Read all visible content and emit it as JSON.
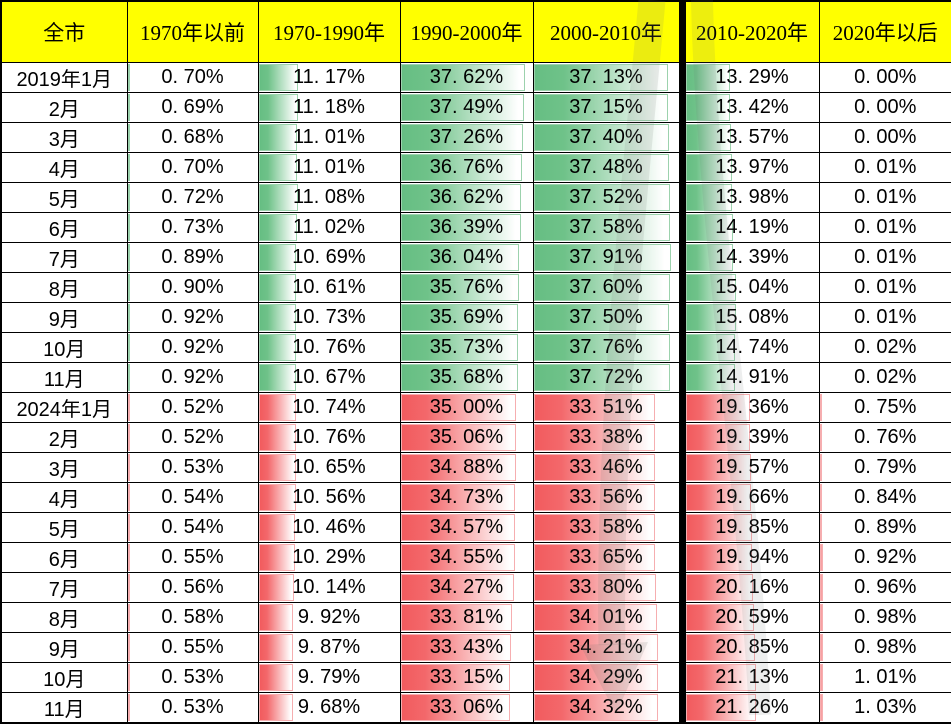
{
  "page": {
    "title": ""
  },
  "colors": {
    "header_bg": "#ffff00",
    "grid_line": "#000000",
    "thick_divider": "#000000",
    "text": "#000000",
    "green_bar": "#66be83",
    "green_bar_border": "#9cd2ad",
    "red_bar": "#f25b5e",
    "red_bar_border": "#f6aeb0",
    "watermark": "#8a8f8c"
  },
  "watermark": {
    "description": "faint gray curved downward-arrow overlay"
  },
  "chart_data": {
    "type": "table",
    "title": "",
    "unit": "%",
    "bar_axis_max": 40,
    "bar_color_by_group": {
      "2019": "green",
      "2024": "red"
    },
    "columns": [
      "全市",
      "1970年以前",
      "1970-1990年",
      "1990-2000年",
      "2000-2010年",
      "2010-2020年",
      "2020年以后"
    ],
    "rows": [
      {
        "label": "2019年1月",
        "bar": "green",
        "values": [
          0.7,
          11.17,
          37.62,
          37.13,
          13.29,
          0.0
        ]
      },
      {
        "label": "2月",
        "bar": "green",
        "values": [
          0.69,
          11.18,
          37.49,
          37.15,
          13.42,
          0.0
        ]
      },
      {
        "label": "3月",
        "bar": "green",
        "values": [
          0.68,
          11.01,
          37.26,
          37.4,
          13.57,
          0.0
        ]
      },
      {
        "label": "4月",
        "bar": "green",
        "values": [
          0.7,
          11.01,
          36.76,
          37.48,
          13.97,
          0.01
        ]
      },
      {
        "label": "5月",
        "bar": "green",
        "values": [
          0.72,
          11.08,
          36.62,
          37.52,
          13.98,
          0.01
        ]
      },
      {
        "label": "6月",
        "bar": "green",
        "values": [
          0.73,
          11.02,
          36.39,
          37.58,
          14.19,
          0.01
        ]
      },
      {
        "label": "7月",
        "bar": "green",
        "values": [
          0.89,
          10.69,
          36.04,
          37.91,
          14.39,
          0.01
        ]
      },
      {
        "label": "8月",
        "bar": "green",
        "values": [
          0.9,
          10.61,
          35.76,
          37.6,
          15.04,
          0.01
        ]
      },
      {
        "label": "9月",
        "bar": "green",
        "values": [
          0.92,
          10.73,
          35.69,
          37.5,
          15.08,
          0.01
        ]
      },
      {
        "label": "10月",
        "bar": "green",
        "values": [
          0.92,
          10.76,
          35.73,
          37.76,
          14.74,
          0.02
        ]
      },
      {
        "label": "11月",
        "bar": "green",
        "values": [
          0.92,
          10.67,
          35.68,
          37.72,
          14.91,
          0.02
        ]
      },
      {
        "label": "2024年1月",
        "bar": "red",
        "values": [
          0.52,
          10.74,
          35.0,
          33.51,
          19.36,
          0.75
        ]
      },
      {
        "label": "2月",
        "bar": "red",
        "values": [
          0.52,
          10.76,
          35.06,
          33.38,
          19.39,
          0.76
        ]
      },
      {
        "label": "3月",
        "bar": "red",
        "values": [
          0.53,
          10.65,
          34.88,
          33.46,
          19.57,
          0.79
        ]
      },
      {
        "label": "4月",
        "bar": "red",
        "values": [
          0.54,
          10.56,
          34.73,
          33.56,
          19.66,
          0.84
        ]
      },
      {
        "label": "5月",
        "bar": "red",
        "values": [
          0.54,
          10.46,
          34.57,
          33.58,
          19.85,
          0.89
        ]
      },
      {
        "label": "6月",
        "bar": "red",
        "values": [
          0.55,
          10.29,
          34.55,
          33.65,
          19.94,
          0.92
        ]
      },
      {
        "label": "7月",
        "bar": "red",
        "values": [
          0.56,
          10.14,
          34.27,
          33.8,
          20.16,
          0.96
        ]
      },
      {
        "label": "8月",
        "bar": "red",
        "values": [
          0.58,
          9.92,
          33.81,
          34.01,
          20.59,
          0.98
        ]
      },
      {
        "label": "9月",
        "bar": "red",
        "values": [
          0.55,
          9.87,
          33.43,
          34.21,
          20.85,
          0.98
        ]
      },
      {
        "label": "10月",
        "bar": "red",
        "values": [
          0.53,
          9.79,
          33.15,
          34.29,
          21.13,
          1.01
        ]
      },
      {
        "label": "11月",
        "bar": "red",
        "values": [
          0.53,
          9.68,
          33.06,
          34.32,
          21.26,
          1.03
        ]
      }
    ]
  }
}
